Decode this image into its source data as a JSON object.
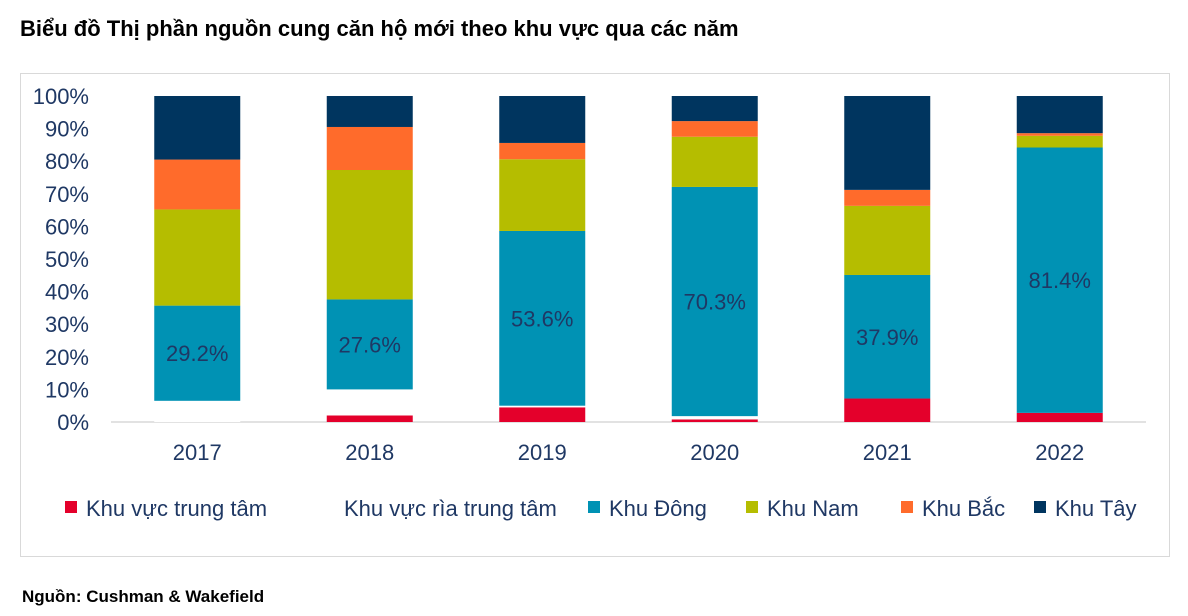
{
  "title": "Biểu đồ Thị phần nguồn cung căn hộ mới theo khu vực qua các năm",
  "source": "Nguồn: Cushman & Wakefield",
  "chart_data": {
    "type": "bar",
    "stacked": true,
    "categories": [
      "2017",
      "2018",
      "2019",
      "2020",
      "2021",
      "2022"
    ],
    "ylim": [
      0,
      100
    ],
    "yticks": [
      "0%",
      "10%",
      "20%",
      "30%",
      "40%",
      "50%",
      "60%",
      "70%",
      "80%",
      "90%",
      "100%"
    ],
    "grid": false,
    "legend_position": "bottom",
    "series": [
      {
        "name": "Khu vực trung tâm",
        "color": "#e4002b",
        "values": [
          0,
          2,
          4.5,
          0.8,
          7.2,
          2.8
        ]
      },
      {
        "name": "Khu vực rìa trung tâm",
        "color": "#ffffff",
        "values": [
          6.5,
          8,
          0.5,
          1,
          0,
          0
        ]
      },
      {
        "name": "Khu Đông",
        "color": "#0092b4",
        "values": [
          29.2,
          27.6,
          53.6,
          70.3,
          37.9,
          81.4
        ]
      },
      {
        "name": "Khu Nam",
        "color": "#b5bd00",
        "values": [
          29.5,
          39.7,
          22,
          15.4,
          21.2,
          3.6
        ]
      },
      {
        "name": "Khu Bắc",
        "color": "#ff6b2b",
        "values": [
          15.3,
          13.2,
          5,
          4.8,
          4.9,
          0.8
        ]
      },
      {
        "name": "Khu Tây",
        "color": "#00355f",
        "values": [
          19.5,
          9.5,
          14.4,
          7.7,
          28.8,
          11.4
        ]
      }
    ],
    "data_labels": {
      "series": "Khu Đông",
      "labels": [
        "29.2%",
        "27.6%",
        "53.6%",
        "70.3%",
        "37.9%",
        "81.4%"
      ]
    }
  }
}
